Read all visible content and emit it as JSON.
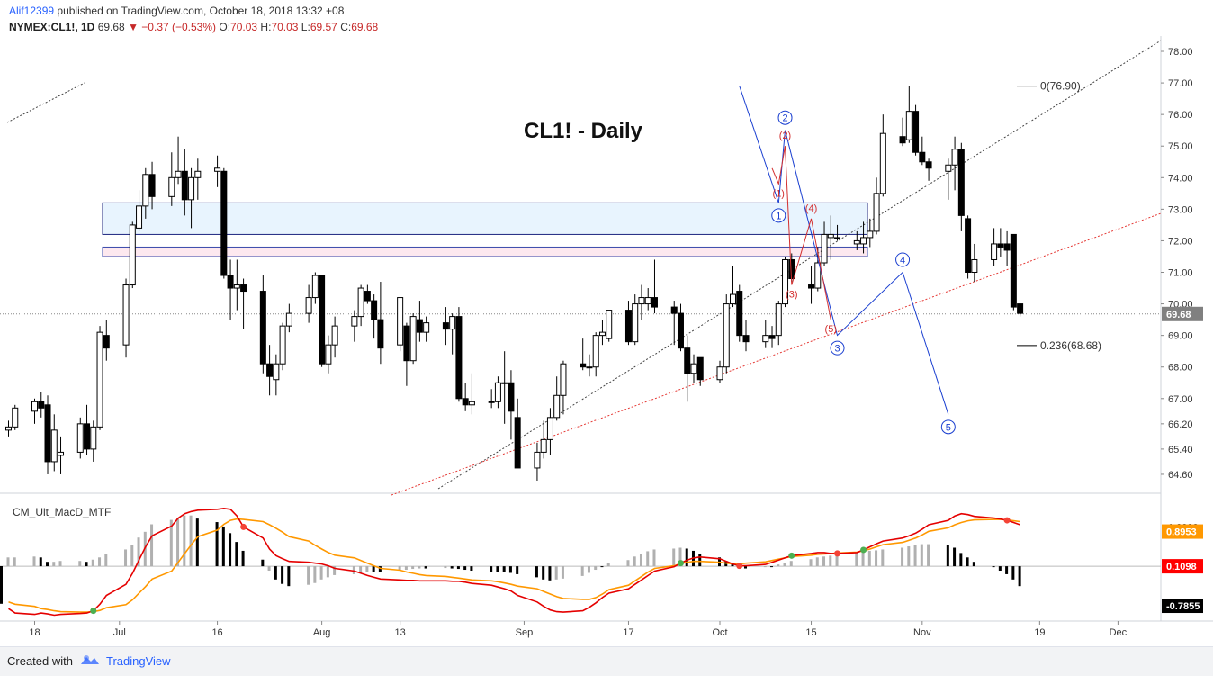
{
  "header": {
    "author": "Alif12399",
    "published": "published on TradingView.com, October 18, 2018 13:32 +08",
    "symbol": "NYMEX:CL1!, 1D",
    "last": "69.68",
    "change": "−0.37 (−0.53%)",
    "o_label": "O:",
    "o_value": "70.03",
    "h_label": "H:",
    "h_value": "70.03",
    "l_label": "L:",
    "l_value": "69.57",
    "c_label": "C:",
    "c_value": "69.68"
  },
  "footer": {
    "created": "Created with",
    "brand": "TradingView"
  },
  "colors": {
    "up": "#000000",
    "down": "#000000",
    "zone_blue": "#1a237e",
    "zone_pink": "#e91e63",
    "macd_red": "#e50000",
    "signal_orange": "#ff9800",
    "price_label": "#808080",
    "accent_blue": "#2962ff"
  },
  "icons": {
    "tradingview_logo": "tradingview-logo-icon"
  },
  "chart_data": {
    "type": "candlestick",
    "title": "CL1! - Daily",
    "price_axis": {
      "ticks": [
        "78.00",
        "77.00",
        "76.00",
        "75.00",
        "74.00",
        "73.00",
        "72.00",
        "71.00",
        "70.00",
        "69.00",
        "68.00",
        "67.00",
        "66.20",
        "65.40",
        "64.60"
      ],
      "current_price": "69.68",
      "ylim": [
        64.0,
        78.2
      ]
    },
    "time_axis": {
      "ticks": [
        "18",
        "Jul",
        "16",
        "Aug",
        "13",
        "Sep",
        "17",
        "Oct",
        "15",
        "Nov",
        "19",
        "Dec"
      ],
      "first_date": "2018-06-14"
    },
    "candles": [
      [
        66.0,
        66.3,
        65.8,
        66.1
      ],
      [
        66.1,
        66.8,
        66.0,
        66.7
      ],
      [
        66.6,
        67.0,
        66.2,
        66.9
      ],
      [
        66.9,
        67.2,
        66.4,
        66.7
      ],
      [
        66.8,
        67.1,
        64.6,
        65.0
      ],
      [
        65.0,
        66.5,
        64.7,
        66.0
      ],
      [
        65.2,
        65.8,
        64.6,
        65.3
      ],
      [
        65.3,
        66.4,
        65.1,
        66.2
      ],
      [
        66.2,
        66.8,
        65.2,
        65.4
      ],
      [
        65.4,
        66.3,
        65.0,
        66.1
      ],
      [
        66.1,
        69.3,
        66.0,
        69.1
      ],
      [
        69.0,
        69.5,
        68.2,
        68.6
      ],
      [
        68.7,
        70.8,
        68.3,
        70.6
      ],
      [
        70.6,
        72.6,
        70.5,
        72.5
      ],
      [
        72.4,
        73.6,
        72.3,
        73.1
      ],
      [
        73.1,
        74.3,
        72.7,
        74.1
      ],
      [
        74.1,
        74.5,
        73.0,
        73.4
      ],
      [
        73.4,
        74.8,
        73.1,
        74.0
      ],
      [
        74.0,
        75.3,
        73.8,
        74.2
      ],
      [
        74.2,
        74.9,
        72.8,
        73.3
      ],
      [
        73.3,
        74.3,
        72.4,
        74.0
      ],
      [
        74.0,
        74.6,
        73.3,
        74.2
      ],
      [
        74.2,
        74.7,
        73.7,
        74.3
      ],
      [
        74.2,
        74.3,
        70.8,
        70.9
      ],
      [
        70.9,
        71.4,
        69.5,
        70.5
      ],
      [
        70.5,
        71.4,
        69.8,
        70.6
      ],
      [
        70.6,
        70.8,
        69.2,
        70.4
      ],
      [
        70.4,
        70.9,
        67.8,
        68.1
      ],
      [
        68.1,
        68.7,
        67.1,
        67.7
      ],
      [
        67.6,
        68.4,
        67.1,
        68.1
      ],
      [
        68.1,
        69.4,
        67.9,
        69.3
      ],
      [
        69.3,
        70.0,
        69.1,
        69.7
      ],
      [
        69.7,
        70.6,
        69.4,
        70.2
      ],
      [
        70.2,
        71.0,
        70.0,
        70.9
      ],
      [
        70.9,
        70.9,
        68.0,
        68.1
      ],
      [
        68.1,
        69.0,
        67.8,
        68.7
      ],
      [
        68.7,
        69.6,
        68.3,
        69.3
      ],
      [
        69.3,
        69.8,
        68.8,
        69.6
      ],
      [
        69.6,
        70.6,
        69.3,
        70.5
      ],
      [
        70.4,
        70.6,
        70.0,
        70.1
      ],
      [
        70.1,
        70.3,
        68.9,
        69.5
      ],
      [
        69.5,
        70.7,
        68.1,
        68.6
      ],
      [
        68.7,
        70.1,
        68.5,
        70.2
      ],
      [
        69.3,
        69.4,
        67.4,
        68.2
      ],
      [
        68.2,
        69.7,
        68.1,
        69.6
      ],
      [
        69.5,
        70.1,
        68.8,
        69.1
      ],
      [
        69.1,
        69.6,
        68.8,
        69.4
      ],
      [
        69.4,
        69.9,
        68.7,
        69.2
      ],
      [
        69.2,
        69.7,
        68.4,
        69.6
      ],
      [
        69.6,
        69.9,
        66.9,
        67.0
      ],
      [
        67.0,
        67.5,
        66.6,
        66.8
      ],
      [
        66.8,
        67.8,
        66.5,
        66.9
      ],
      [
        66.9,
        67.3,
        66.7,
        66.9
      ],
      [
        66.9,
        67.7,
        66.7,
        67.5
      ],
      [
        67.5,
        68.5,
        66.2,
        67.5
      ],
      [
        67.5,
        67.9,
        65.7,
        66.6
      ],
      [
        66.4,
        67.0,
        64.8,
        64.8
      ],
      [
        64.8,
        65.6,
        64.4,
        65.3
      ],
      [
        65.3,
        66.3,
        65.1,
        65.7
      ],
      [
        65.7,
        66.7,
        65.2,
        66.4
      ],
      [
        66.4,
        67.7,
        66.3,
        67.1
      ],
      [
        67.1,
        68.2,
        66.5,
        68.1
      ],
      [
        68.1,
        68.9,
        67.9,
        68.0
      ],
      [
        68.0,
        68.4,
        67.7,
        68.0
      ],
      [
        68.0,
        69.1,
        67.7,
        69.0
      ],
      [
        69.0,
        69.5,
        68.7,
        69.1
      ],
      [
        68.9,
        69.8,
        68.8,
        69.8
      ],
      [
        69.8,
        70.1,
        68.7,
        68.8
      ],
      [
        68.8,
        70.3,
        68.7,
        70.0
      ],
      [
        70.0,
        70.6,
        69.5,
        70.2
      ],
      [
        70.0,
        70.5,
        69.8,
        70.2
      ],
      [
        70.2,
        71.4,
        69.7,
        69.9
      ],
      [
        69.9,
        70.1,
        68.7,
        69.7
      ],
      [
        69.7,
        70.0,
        68.5,
        68.6
      ],
      [
        68.6,
        69.0,
        66.9,
        67.8
      ],
      [
        67.8,
        68.4,
        67.5,
        68.1
      ],
      [
        68.3,
        68.3,
        67.4,
        67.6
      ],
      [
        67.6,
        68.2,
        67.5,
        68.0
      ],
      [
        68.0,
        70.3,
        67.8,
        70.0
      ],
      [
        70.0,
        71.2,
        69.9,
        70.3
      ],
      [
        70.4,
        70.6,
        68.8,
        69.0
      ],
      [
        69.0,
        69.5,
        68.5,
        68.8
      ],
      [
        68.8,
        69.5,
        68.6,
        69.0
      ],
      [
        69.0,
        69.3,
        68.6,
        68.9
      ],
      [
        69.0,
        70.1,
        68.7,
        70.0
      ],
      [
        70.0,
        71.5,
        69.9,
        71.4
      ],
      [
        71.4,
        71.6,
        70.7,
        70.8
      ],
      [
        70.6,
        71.2,
        70.0,
        70.5
      ],
      [
        70.5,
        71.8,
        70.4,
        71.3
      ],
      [
        71.3,
        72.6,
        71.2,
        72.2
      ],
      [
        72.1,
        72.8,
        71.4,
        72.2
      ],
      [
        72.1,
        72.5,
        72.0,
        72.1
      ],
      [
        71.9,
        72.3,
        71.7,
        72.0
      ],
      [
        71.9,
        72.6,
        71.6,
        72.1
      ],
      [
        72.1,
        72.7,
        71.8,
        72.3
      ],
      [
        72.3,
        74.0,
        72.2,
        73.5
      ],
      [
        73.5,
        76.0,
        73.4,
        75.4
      ],
      [
        75.3,
        75.9,
        75.0,
        75.1
      ],
      [
        75.2,
        76.9,
        75.1,
        76.1
      ],
      [
        76.1,
        76.3,
        74.7,
        74.8
      ],
      [
        74.8,
        75.3,
        74.4,
        74.5
      ],
      [
        74.5,
        74.6,
        73.9,
        74.3
      ],
      [
        74.2,
        74.6,
        73.3,
        74.4
      ],
      [
        74.4,
        75.3,
        73.6,
        74.9
      ],
      [
        74.9,
        75.1,
        72.3,
        72.8
      ],
      [
        72.7,
        72.8,
        70.8,
        71.0
      ],
      [
        71.0,
        71.9,
        70.7,
        71.4
      ],
      [
        71.4,
        72.4,
        71.2,
        71.9
      ],
      [
        71.9,
        72.4,
        71.5,
        71.8
      ],
      [
        71.9,
        72.3,
        71.2,
        71.7
      ],
      [
        72.2,
        72.2,
        69.8,
        69.9
      ],
      [
        70.0,
        70.0,
        69.6,
        69.7
      ]
    ],
    "zones": [
      {
        "name": "resistance",
        "from": 72.2,
        "to": 73.2
      },
      {
        "name": "support",
        "from": 71.5,
        "to": 71.8
      }
    ],
    "fib_levels": [
      {
        "label": "0(76.90)",
        "value": 76.9
      },
      {
        "label": "0.236(68.68)",
        "value": 68.68
      }
    ],
    "elliott_blue": [
      {
        "label": "1",
        "date": "2018-10-10",
        "price": 73.2
      },
      {
        "label": "2",
        "date": "2018-10-11",
        "price": 75.5
      },
      {
        "label": "3",
        "date": "2018-10-19",
        "price": 69.0
      },
      {
        "label": "4",
        "date": "2018-10-29",
        "price": 71.0
      },
      {
        "label": "5",
        "date": "2018-11-05",
        "price": 66.5
      }
    ],
    "elliott_red": [
      {
        "label": "(1)",
        "date": "2018-10-10",
        "price": 73.8
      },
      {
        "label": "(2)",
        "date": "2018-10-11",
        "price": 75.0
      },
      {
        "label": "(3)",
        "date": "2018-10-12",
        "price": 70.6
      },
      {
        "label": "(4)",
        "date": "2018-10-15",
        "price": 72.7
      },
      {
        "label": "(5)",
        "date": "2018-10-18",
        "price": 69.5
      }
    ],
    "macd": {
      "title": "CM_Ult_MacD_MTF",
      "ticks": [
        "1.0000"
      ],
      "labels": [
        "0.8953",
        "0.1098",
        "-0.7855"
      ],
      "label_values": [
        0.8953,
        0.1098,
        -0.7855
      ],
      "ylim": [
        -1.05,
        1.6
      ],
      "zero": 0.1098,
      "macd_line": [
        -0.85,
        -0.95,
        -0.98,
        -0.95,
        -0.97,
        -1.0,
        -0.98,
        -0.96,
        -0.95,
        -0.9,
        -0.75,
        -0.55,
        -0.3,
        -0.05,
        0.25,
        0.55,
        0.8,
        1.02,
        1.2,
        1.3,
        1.35,
        1.38,
        1.4,
        1.42,
        1.4,
        1.25,
        1.0,
        0.75,
        0.5,
        0.35,
        0.28,
        0.22,
        0.2,
        0.18,
        0.16,
        0.12,
        0.06,
        0.0,
        -0.05,
        -0.1,
        -0.14,
        -0.18,
        -0.2,
        -0.21,
        -0.21,
        -0.22,
        -0.22,
        -0.22,
        -0.23,
        -0.23,
        -0.25,
        -0.28,
        -0.32,
        -0.36,
        -0.4,
        -0.45,
        -0.55,
        -0.7,
        -0.8,
        -0.88,
        -0.92,
        -0.93,
        -0.9,
        -0.82,
        -0.72,
        -0.6,
        -0.5,
        -0.4,
        -0.3,
        -0.2,
        -0.1,
        0.0,
        0.1,
        0.18,
        0.25,
        0.3,
        0.32,
        0.28,
        0.22,
        0.16,
        0.12,
        0.12,
        0.15,
        0.2,
        0.25,
        0.3,
        0.35,
        0.4,
        0.42,
        0.42,
        0.4,
        0.4,
        0.42,
        0.48,
        0.55,
        0.62,
        0.68,
        0.75,
        0.8,
        0.86,
        0.95,
        1.05,
        1.15,
        1.25,
        1.3,
        1.28,
        1.24,
        1.2,
        1.18,
        1.15,
        1.1,
        1.05,
        0.85,
        0.6,
        0.4,
        0.25,
        0.1,
        -0.05
      ],
      "signal_line": [
        -0.7,
        -0.75,
        -0.8,
        -0.85,
        -0.87,
        -0.9,
        -0.92,
        -0.93,
        -0.93,
        -0.92,
        -0.89,
        -0.83,
        -0.76,
        -0.65,
        -0.5,
        -0.35,
        -0.18,
        0.0,
        0.2,
        0.4,
        0.6,
        0.78,
        0.93,
        1.06,
        1.15,
        1.18,
        1.17,
        1.12,
        1.05,
        0.97,
        0.88,
        0.78,
        0.68,
        0.58,
        0.5,
        0.42,
        0.36,
        0.3,
        0.24,
        0.18,
        0.12,
        0.06,
        0.02,
        -0.02,
        -0.05,
        -0.08,
        -0.1,
        -0.12,
        -0.14,
        -0.16,
        -0.18,
        -0.2,
        -0.22,
        -0.24,
        -0.27,
        -0.3,
        -0.34,
        -0.4,
        -0.46,
        -0.52,
        -0.58,
        -0.62,
        -0.64,
        -0.64,
        -0.6,
        -0.52,
        -0.42,
        -0.32,
        -0.22,
        -0.12,
        -0.02,
        0.06,
        0.12,
        0.17,
        0.2,
        0.22,
        0.22,
        0.2,
        0.18,
        0.16,
        0.16,
        0.18,
        0.21,
        0.24,
        0.27,
        0.3,
        0.33,
        0.36,
        0.38,
        0.39,
        0.4,
        0.41,
        0.43,
        0.46,
        0.5,
        0.55,
        0.6,
        0.65,
        0.7,
        0.75,
        0.82,
        0.9,
        0.98,
        1.05,
        1.1,
        1.14,
        1.16,
        1.17,
        1.17,
        1.16,
        1.14,
        1.12,
        1.08,
        1.03,
        0.98,
        0.93,
        0.88,
        0.8
      ],
      "histogram": [
        0.2,
        0.2,
        0.22,
        0.2,
        0.1,
        0.1,
        0.12,
        0.12,
        0.1,
        0.15,
        0.2,
        0.28,
        0.38,
        0.48,
        0.65,
        0.78,
        0.95,
        1.05,
        1.1,
        1.15,
        1.15,
        1.08,
        1.0,
        0.9,
        0.75,
        0.55,
        0.35,
        0.15,
        -0.1,
        -0.3,
        -0.4,
        -0.45,
        -0.42,
        -0.38,
        -0.3,
        -0.25,
        -0.2,
        -0.18,
        -0.15,
        -0.12,
        -0.12,
        -0.12,
        -0.1,
        -0.08,
        -0.06,
        -0.05,
        -0.05,
        -0.04,
        -0.05,
        -0.06,
        -0.08,
        -0.1,
        -0.12,
        -0.14,
        -0.14,
        -0.15,
        -0.18,
        -0.25,
        -0.3,
        -0.32,
        -0.3,
        -0.28,
        -0.22,
        -0.15,
        -0.08,
        0.0,
        0.08,
        0.14,
        0.22,
        0.28,
        0.34,
        0.38,
        0.4,
        0.42,
        0.4,
        0.35,
        0.28,
        0.2,
        0.12,
        0.05,
        -0.05,
        -0.05,
        -0.02,
        0.0,
        0.04,
        0.08,
        0.12,
        0.16,
        0.2,
        0.22,
        0.24,
        0.28,
        0.3,
        0.33,
        0.35,
        0.36,
        0.38,
        0.42,
        0.45,
        0.48,
        0.5,
        0.5,
        0.48,
        0.42,
        0.3,
        0.2,
        0.1,
        0.0,
        -0.1,
        -0.18,
        -0.3,
        -0.45,
        -0.52,
        -0.58,
        -0.62,
        -0.68,
        -0.76,
        -0.85
      ]
    }
  }
}
